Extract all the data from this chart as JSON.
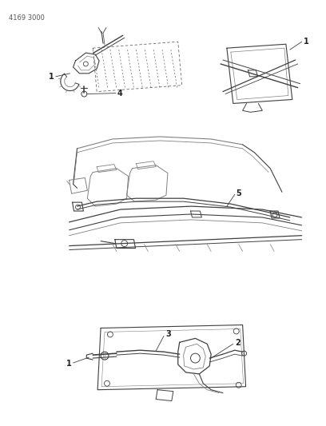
{
  "title_code": "4169 3000",
  "bg_color": "#ffffff",
  "lc": "#404040",
  "lc_light": "#808080",
  "lc_dash": "#666666",
  "fig_width": 4.08,
  "fig_height": 5.33,
  "dpi": 100,
  "label1_tl": "1",
  "label4_tl": "4",
  "label1_tr": "1",
  "label5_mid": "5",
  "label1_bot": "1",
  "label2_bot": "2",
  "label3_bot": "3"
}
